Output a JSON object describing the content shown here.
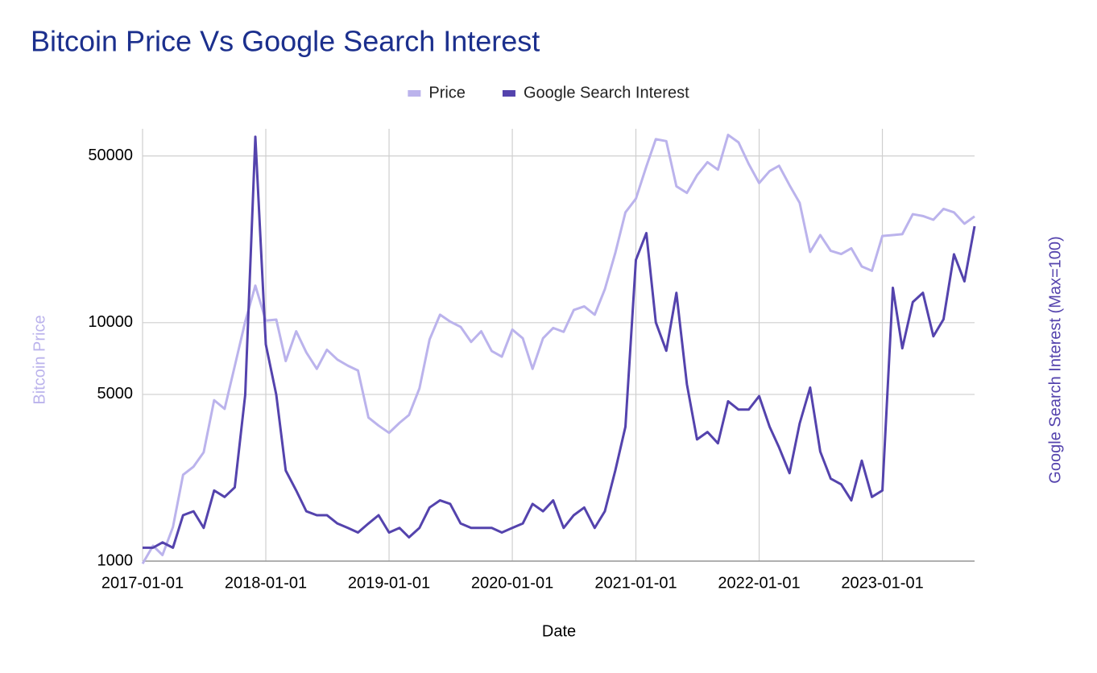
{
  "chart_data": {
    "type": "line",
    "title": "Bitcoin Price Vs Google Search Interest",
    "x_label": "Date",
    "y_label": "Bitcoin Price",
    "y2_label": "Google Search Interest (Max=100)",
    "log_y": true,
    "log_y2": true,
    "grid": true,
    "legend": "top",
    "x": [
      "2017-01-01",
      "2017-02-01",
      "2017-03-01",
      "2017-04-01",
      "2017-05-01",
      "2017-06-01",
      "2017-07-01",
      "2017-08-01",
      "2017-09-01",
      "2017-10-01",
      "2017-11-01",
      "2017-12-01",
      "2018-01-01",
      "2018-02-01",
      "2018-03-01",
      "2018-04-01",
      "2018-05-01",
      "2018-06-01",
      "2018-07-01",
      "2018-08-01",
      "2018-09-01",
      "2018-10-01",
      "2018-11-01",
      "2018-12-01",
      "2019-01-01",
      "2019-02-01",
      "2019-03-01",
      "2019-04-01",
      "2019-05-01",
      "2019-06-01",
      "2019-07-01",
      "2019-08-01",
      "2019-09-01",
      "2019-10-01",
      "2019-11-01",
      "2019-12-01",
      "2020-01-01",
      "2020-02-01",
      "2020-03-01",
      "2020-04-01",
      "2020-05-01",
      "2020-06-01",
      "2020-07-01",
      "2020-08-01",
      "2020-09-01",
      "2020-10-01",
      "2020-11-01",
      "2020-12-01",
      "2021-01-01",
      "2021-02-01",
      "2021-03-01",
      "2021-04-01",
      "2021-05-01",
      "2021-06-01",
      "2021-07-01",
      "2021-08-01",
      "2021-09-01",
      "2021-10-01",
      "2021-11-01",
      "2021-12-01",
      "2022-01-01",
      "2022-02-01",
      "2022-03-01",
      "2022-04-01",
      "2022-05-01",
      "2022-06-01",
      "2022-07-01",
      "2022-08-01",
      "2022-09-01",
      "2022-10-01",
      "2022-11-01",
      "2022-12-01",
      "2023-01-01",
      "2023-02-01",
      "2023-03-01",
      "2023-04-01",
      "2023-05-01",
      "2023-06-01",
      "2023-07-01",
      "2023-08-01",
      "2023-09-01",
      "2023-10-01"
    ],
    "xlim": [
      "2017-01-01",
      "2023-10-01"
    ],
    "xticks": [
      "2017-01-01",
      "2018-01-01",
      "2019-01-01",
      "2020-01-01",
      "2021-01-01",
      "2022-01-01",
      "2023-01-01"
    ],
    "ylim": [
      1000,
      65000
    ],
    "yticks": [
      1000,
      5000,
      10000,
      50000
    ],
    "y2lim": [
      1.67,
      108
    ],
    "series": [
      {
        "name": "Price",
        "color": "#bbb3ec",
        "values": [
          975,
          1160,
          1060,
          1390,
          2300,
          2490,
          2860,
          4730,
          4350,
          6570,
          10100,
          14300,
          10200,
          10300,
          6900,
          9200,
          7500,
          6400,
          7700,
          7000,
          6600,
          6300,
          4000,
          3700,
          3450,
          3800,
          4100,
          5300,
          8500,
          10800,
          10100,
          9600,
          8300,
          9200,
          7600,
          7200,
          9350,
          8600,
          6400,
          8600,
          9500,
          9150,
          11300,
          11700,
          10800,
          13800,
          19600,
          29000,
          33100,
          45200,
          58800,
          57700,
          37300,
          35000,
          41500,
          47100,
          43800,
          61300,
          57000,
          46300,
          38500,
          43200,
          45500,
          37700,
          31800,
          19800,
          23300,
          20000,
          19400,
          20500,
          17200,
          16500,
          23100,
          23300,
          23500,
          28500,
          28000,
          27000,
          30000,
          29000,
          26000,
          27900
        ]
      },
      {
        "name": "Google Search Interest",
        "color": "#5443ad",
        "axis": "y2",
        "values": [
          1.9,
          1.9,
          2.0,
          1.9,
          2.6,
          2.7,
          2.3,
          3.3,
          3.1,
          3.4,
          8.3,
          100,
          13.5,
          8.3,
          4.0,
          3.3,
          2.7,
          2.6,
          2.6,
          2.4,
          2.3,
          2.2,
          2.4,
          2.6,
          2.2,
          2.3,
          2.1,
          2.3,
          2.8,
          3.0,
          2.9,
          2.4,
          2.3,
          2.3,
          2.3,
          2.2,
          2.3,
          2.4,
          2.9,
          2.7,
          3.0,
          2.3,
          2.6,
          2.8,
          2.3,
          2.7,
          4.0,
          6.1,
          30.5,
          39.5,
          16.7,
          12.7,
          22.2,
          9.2,
          5.4,
          5.8,
          5.2,
          7.8,
          7.2,
          7.2,
          8.2,
          6.1,
          5.0,
          3.9,
          6.3,
          8.9,
          4.8,
          3.7,
          3.5,
          3.0,
          4.4,
          3.1,
          3.3,
          23.3,
          13.0,
          20.3,
          22.2,
          14.6,
          17.2,
          32.2,
          24.8,
          42.2
        ]
      }
    ]
  }
}
